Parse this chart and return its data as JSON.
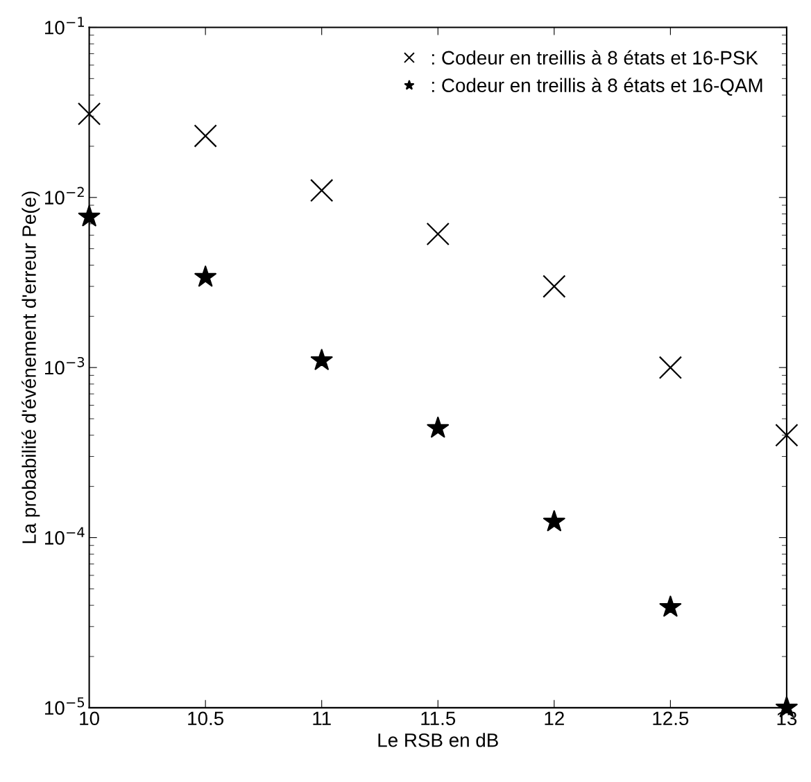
{
  "chart_data": {
    "type": "scatter",
    "xlabel": "Le RSB en dB",
    "ylabel": "La probabilité d'événement d'erreur Pe(e)",
    "log": "y",
    "grid": false,
    "legend": "top right",
    "x": [
      10,
      10.5,
      11,
      11.5,
      12,
      12.5,
      13
    ],
    "xlim": [
      10,
      13
    ],
    "xticks": [
      10,
      10.5,
      11,
      11.5,
      12,
      12.5,
      13
    ],
    "ylim": [
      1e-05,
      0.1
    ],
    "yticks": [
      {
        "value": 1e-05,
        "label": "10$^{−5}$"
      },
      {
        "value": 0.0001,
        "label": "10$^{−4}$"
      },
      {
        "value": 0.001,
        "label": "10$^{−3}$"
      },
      {
        "value": 0.01,
        "label": "10$^{−2}$"
      },
      {
        "value": 0.1,
        "label": "10$^{−1}$"
      }
    ],
    "series": [
      {
        "name": ": Codeur en treillis à 8 états et 16-PSK",
        "color": "#000000",
        "marker": "cross",
        "values": [
          0.031,
          0.023,
          0.011,
          0.0061,
          0.003,
          0.001,
          0.0004
        ]
      },
      {
        "name": ": Codeur en treillis à 8 états et 16-QAM",
        "color": "#000000",
        "marker": "star",
        "values": [
          0.0077,
          0.0034,
          0.0011,
          0.00044,
          0.000124,
          3.9e-05,
          1e-05
        ]
      }
    ]
  }
}
